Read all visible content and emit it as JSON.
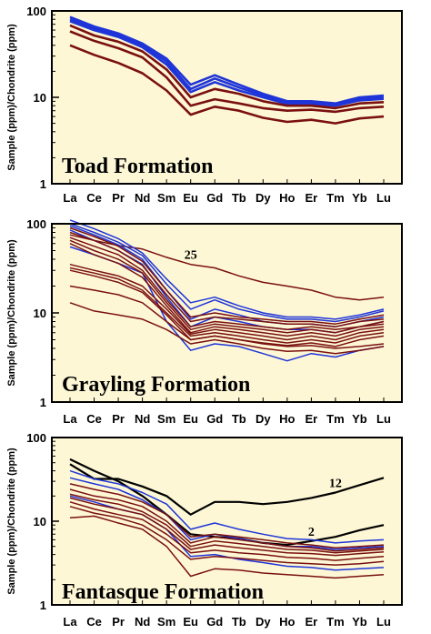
{
  "colors": {
    "background": "#ffffff",
    "plot_bg": "#fdf7d6",
    "red": "#7a1010",
    "blue": "#1f35d8",
    "black": "#000000"
  },
  "chart_data": [
    {
      "type": "line",
      "title": "Toad Formation",
      "ylabel": "Sample (ppm)/Chondrite (ppm)",
      "yscale": "log",
      "ylim": [
        1,
        100
      ],
      "yticks": [
        "100",
        "10",
        "1"
      ],
      "categories": [
        "La",
        "Ce",
        "Pr",
        "Nd",
        "Sm",
        "Eu",
        "Gd",
        "Tb",
        "Dy",
        "Ho",
        "Er",
        "Tm",
        "Yb",
        "Lu"
      ],
      "annotations": [],
      "series": [
        {
          "color": "blue",
          "values": [
            85,
            66,
            55,
            42,
            28,
            14,
            18,
            14,
            11,
            9,
            9,
            8.5,
            10,
            10.5
          ]
        },
        {
          "color": "blue",
          "values": [
            80,
            63,
            52,
            40,
            26,
            12.5,
            16.5,
            13,
            10.5,
            8.7,
            8.7,
            8.2,
            9.6,
            10
          ]
        },
        {
          "color": "blue",
          "values": [
            76,
            60,
            50,
            38,
            24,
            11.5,
            15,
            12,
            10,
            8.4,
            8.4,
            8,
            9.2,
            9.6
          ]
        },
        {
          "color": "red",
          "values": [
            68,
            52,
            44,
            34,
            21,
            10,
            12.5,
            11,
            9,
            8,
            8,
            7.5,
            8.5,
            8.8
          ]
        },
        {
          "color": "red",
          "values": [
            58,
            45,
            37,
            29,
            17,
            8,
            9.5,
            8.5,
            7.5,
            7,
            7.2,
            6.8,
            7.5,
            7.8
          ]
        },
        {
          "color": "red",
          "values": [
            40,
            31,
            25,
            19,
            12,
            6.3,
            7.8,
            7,
            5.8,
            5.2,
            5.5,
            5,
            5.7,
            6
          ]
        }
      ]
    },
    {
      "type": "line",
      "title": "Grayling Formation",
      "ylabel": "Sample (ppm)/Chondrite (ppm)",
      "yscale": "log",
      "ylim": [
        1,
        100
      ],
      "yticks": [
        "100",
        "10",
        "1"
      ],
      "categories": [
        "La",
        "Ce",
        "Pr",
        "Nd",
        "Sm",
        "Eu",
        "Gd",
        "Tb",
        "Dy",
        "Ho",
        "Er",
        "Tm",
        "Yb",
        "Lu"
      ],
      "annotations": [
        {
          "text": "25",
          "series": 0,
          "at": "Eu"
        }
      ],
      "series": [
        {
          "color": "red",
          "values": [
            75,
            65,
            57,
            52,
            42,
            35,
            32,
            26,
            22,
            20,
            18,
            15,
            14,
            15
          ]
        },
        {
          "color": "blue",
          "values": [
            110,
            88,
            68,
            47,
            24,
            13,
            15,
            12,
            10,
            9,
            9,
            8.5,
            9.5,
            11
          ]
        },
        {
          "color": "blue",
          "values": [
            100,
            80,
            62,
            44,
            21,
            11,
            14,
            11,
            9.5,
            8.5,
            8.5,
            8,
            9,
            10.5
          ]
        },
        {
          "color": "blue",
          "values": [
            95,
            75,
            58,
            40,
            18,
            8.5,
            11,
            9.5,
            8,
            7.5,
            7.5,
            7,
            8,
            9
          ]
        },
        {
          "color": "blue",
          "values": [
            85,
            65,
            50,
            35,
            15,
            7,
            9,
            8,
            7,
            6.5,
            6.5,
            6,
            7,
            8
          ]
        },
        {
          "color": "blue",
          "values": [
            55,
            45,
            36,
            28,
            8,
            3.8,
            4.5,
            4.2,
            3.5,
            2.9,
            3.5,
            3.2,
            3.8,
            4.2
          ]
        },
        {
          "color": "red",
          "values": [
            90,
            72,
            56,
            38,
            18,
            9,
            10,
            9,
            8.5,
            8,
            8,
            7.5,
            8.5,
            9.5
          ]
        },
        {
          "color": "red",
          "values": [
            80,
            65,
            50,
            34,
            16,
            8,
            9,
            8.5,
            8,
            7.5,
            7.5,
            7,
            8,
            8.5
          ]
        },
        {
          "color": "red",
          "values": [
            70,
            56,
            45,
            30,
            14,
            7,
            8,
            7.5,
            7,
            6.5,
            7,
            6.5,
            7,
            8
          ]
        },
        {
          "color": "red",
          "values": [
            65,
            50,
            40,
            28,
            13,
            6.5,
            7.5,
            7,
            6.5,
            6,
            6.5,
            6,
            7,
            7.5
          ]
        },
        {
          "color": "red",
          "values": [
            60,
            45,
            36,
            25,
            12,
            6,
            7,
            6.5,
            6,
            5.5,
            6,
            5.5,
            6.5,
            7
          ]
        },
        {
          "color": "red",
          "values": [
            35,
            30,
            26,
            20,
            11,
            5.8,
            6.5,
            6,
            5.5,
            5,
            5.5,
            5,
            6,
            6.5
          ]
        },
        {
          "color": "red",
          "values": [
            32,
            28,
            24,
            18,
            10,
            5.5,
            6,
            5.5,
            5,
            4.6,
            5,
            4.6,
            5.5,
            6
          ]
        },
        {
          "color": "red",
          "values": [
            30,
            26,
            22,
            17,
            9.5,
            5,
            5.5,
            5,
            4.6,
            4.3,
            4.6,
            4.2,
            5,
            5.5
          ]
        },
        {
          "color": "red",
          "values": [
            20,
            18,
            16,
            13,
            8,
            5,
            5.5,
            5,
            4.5,
            4.2,
            4.3,
            4,
            4.2,
            4.5
          ]
        },
        {
          "color": "red",
          "values": [
            13,
            10.5,
            9.5,
            8.5,
            6.5,
            4.5,
            5,
            4.5,
            4,
            3.7,
            3.8,
            3.5,
            3.8,
            4.2
          ]
        }
      ]
    },
    {
      "type": "line",
      "title": "Fantasque Formation",
      "ylabel": "Sample (ppm)/Chondrite (ppm)",
      "yscale": "log",
      "ylim": [
        1,
        100
      ],
      "yticks": [
        "100",
        "10",
        "1"
      ],
      "categories": [
        "La",
        "Ce",
        "Pr",
        "Nd",
        "Sm",
        "Eu",
        "Gd",
        "Tb",
        "Dy",
        "Ho",
        "Er",
        "Tm",
        "Yb",
        "Lu"
      ],
      "annotations": [
        {
          "text": "12",
          "series": 0,
          "at": "Tm"
        },
        {
          "text": "2",
          "series": 1,
          "at": "Er"
        }
      ],
      "series": [
        {
          "color": "black",
          "values": [
            48,
            32,
            32,
            26,
            20,
            12,
            17,
            17,
            16,
            17,
            19,
            22,
            27,
            33
          ]
        },
        {
          "color": "black",
          "values": [
            55,
            40,
            30,
            20,
            12,
            7,
            6.5,
            6.2,
            5.5,
            5.2,
            5.8,
            6.5,
            7.8,
            9
          ]
        },
        {
          "color": "blue",
          "values": [
            40,
            32,
            28,
            22,
            16,
            8,
            9.5,
            8,
            7,
            6.2,
            6,
            5.5,
            5.8,
            6
          ]
        },
        {
          "color": "blue",
          "values": [
            33,
            28,
            24,
            18,
            12,
            6,
            7,
            6.2,
            5.5,
            5,
            5,
            4.6,
            4.8,
            5
          ]
        },
        {
          "color": "blue",
          "values": [
            20,
            17,
            14,
            12,
            8,
            3.8,
            4,
            3.5,
            3.2,
            2.9,
            2.8,
            2.6,
            2.7,
            2.8
          ]
        },
        {
          "color": "red",
          "values": [
            28,
            24,
            21,
            17,
            12,
            6.5,
            7,
            6.5,
            6,
            5.5,
            5.2,
            4.8,
            5,
            5.2
          ]
        },
        {
          "color": "red",
          "values": [
            24,
            20,
            18,
            15,
            10,
            5.5,
            6.5,
            6,
            5.5,
            5,
            4.8,
            4.4,
            4.6,
            4.8
          ]
        },
        {
          "color": "red",
          "values": [
            21,
            18,
            16,
            13,
            9,
            5,
            5.8,
            5.4,
            5,
            4.6,
            4.5,
            4.2,
            4.4,
            4.6
          ]
        },
        {
          "color": "red",
          "values": [
            19,
            16,
            14,
            12,
            8,
            4.6,
            5.2,
            4.8,
            4.5,
            4.2,
            4.1,
            3.9,
            4.1,
            4.3
          ]
        },
        {
          "color": "red",
          "values": [
            17,
            14,
            12,
            10.5,
            7,
            4.2,
            4.5,
            4.2,
            4,
            3.7,
            3.6,
            3.4,
            3.6,
            3.8
          ]
        },
        {
          "color": "red",
          "values": [
            15,
            12.5,
            11,
            9,
            6,
            3.5,
            3.8,
            3.6,
            3.4,
            3.2,
            3.1,
            3,
            3.1,
            3.3
          ]
        },
        {
          "color": "red",
          "values": [
            11,
            11.5,
            9.5,
            8,
            5,
            2.2,
            2.7,
            2.6,
            2.4,
            2.3,
            2.2,
            2.1,
            2.2,
            2.3
          ]
        }
      ]
    }
  ]
}
